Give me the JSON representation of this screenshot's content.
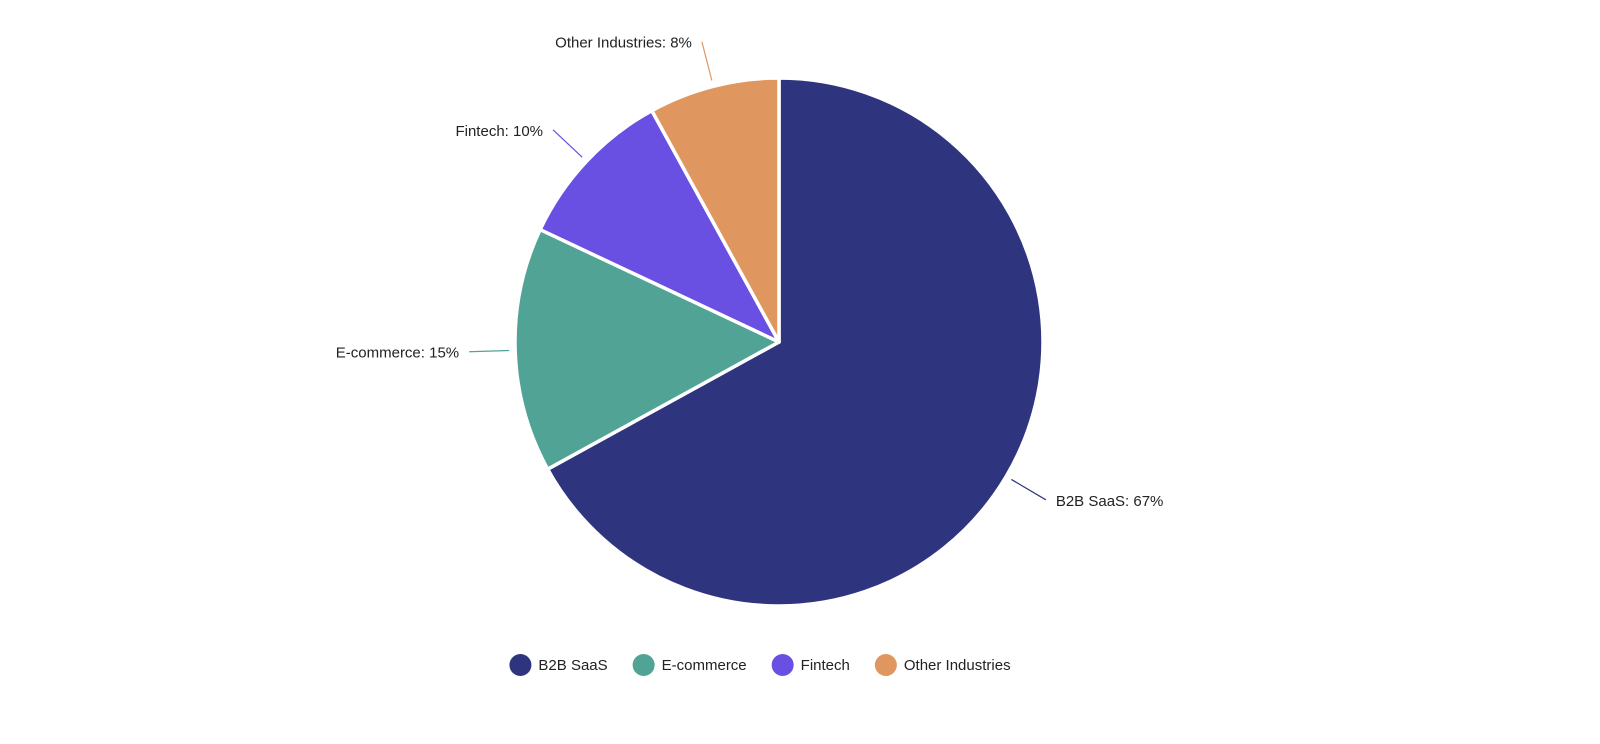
{
  "chart_data": {
    "type": "pie",
    "categories": [
      "B2B SaaS",
      "E-commerce",
      "Fintech",
      "Other Industries"
    ],
    "values": [
      67,
      15,
      10,
      8
    ],
    "value_labels": [
      "B2B SaaS: 67%",
      "E-commerce: 15%",
      "Fintech: 10%",
      "Other Industries: 8%"
    ],
    "colors": [
      "#2e357e",
      "#51a395",
      "#6950e2",
      "#e0975f"
    ],
    "legend": "bottom"
  }
}
